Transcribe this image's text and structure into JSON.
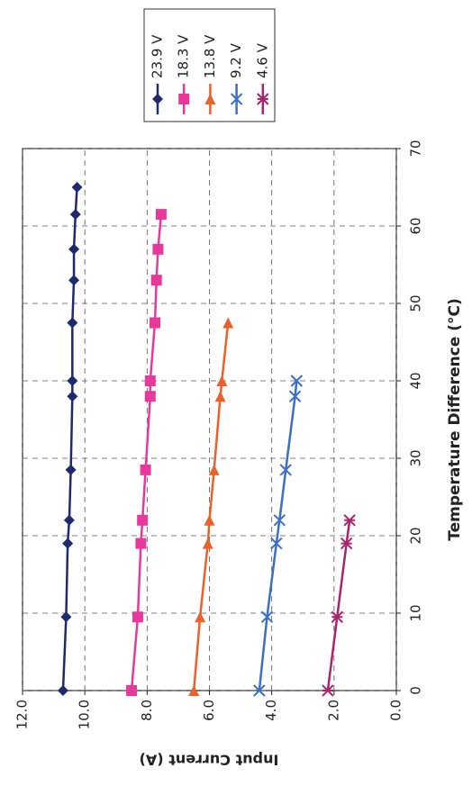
{
  "chart_data": {
    "type": "line",
    "xlabel": "Temperature Difference (°C)",
    "ylabel": "Input Current (A)",
    "xlim": [
      0,
      70
    ],
    "xticks": [
      0,
      10,
      20,
      30,
      40,
      50,
      60,
      70
    ],
    "ylim": [
      0,
      12
    ],
    "yticks": [
      {
        "value": 0,
        "label": "0.0"
      },
      {
        "value": 2,
        "label": "2.0"
      },
      {
        "value": 4,
        "label": "4.0"
      },
      {
        "value": 6,
        "label": "6.0"
      },
      {
        "value": 8,
        "label": "8.0"
      },
      {
        "value": 10,
        "label": "10.0"
      },
      {
        "value": 12,
        "label": "12.0"
      }
    ],
    "grid": true,
    "legend": "upper right",
    "series": [
      {
        "name": "23.9 V",
        "color": "#1f2a6e",
        "marker": "diamond",
        "x": [
          0,
          9.5,
          19,
          22,
          28.5,
          38,
          40,
          47.5,
          53,
          57,
          61.5,
          65
        ],
        "values": [
          10.7,
          10.6,
          10.55,
          10.5,
          10.45,
          10.4,
          10.4,
          10.4,
          10.35,
          10.35,
          10.3,
          10.25
        ]
      },
      {
        "name": "18.3 V",
        "color": "#e6399b",
        "marker": "square",
        "x": [
          0,
          9.5,
          19,
          22,
          28.5,
          38,
          40,
          47.5,
          53,
          57,
          61.5
        ],
        "values": [
          8.5,
          8.3,
          8.2,
          8.15,
          8.05,
          7.9,
          7.9,
          7.75,
          7.7,
          7.65,
          7.55
        ]
      },
      {
        "name": "13.8 V",
        "color": "#e8622a",
        "marker": "triangle",
        "x": [
          0,
          9.5,
          19,
          22,
          28.5,
          38,
          40,
          47.5
        ],
        "values": [
          6.5,
          6.3,
          6.05,
          6.0,
          5.85,
          5.65,
          5.6,
          5.4
        ]
      },
      {
        "name": "9.2 V",
        "color": "#3a6fc4",
        "marker": "x",
        "x": [
          0,
          9.5,
          19,
          22,
          28.5,
          38,
          40
        ],
        "values": [
          4.4,
          4.15,
          3.85,
          3.75,
          3.55,
          3.25,
          3.2
        ]
      },
      {
        "name": "4.6 V",
        "color": "#a8246e",
        "marker": "star",
        "x": [
          0,
          9.5,
          19,
          22
        ],
        "values": [
          2.2,
          1.9,
          1.6,
          1.5
        ]
      }
    ]
  }
}
